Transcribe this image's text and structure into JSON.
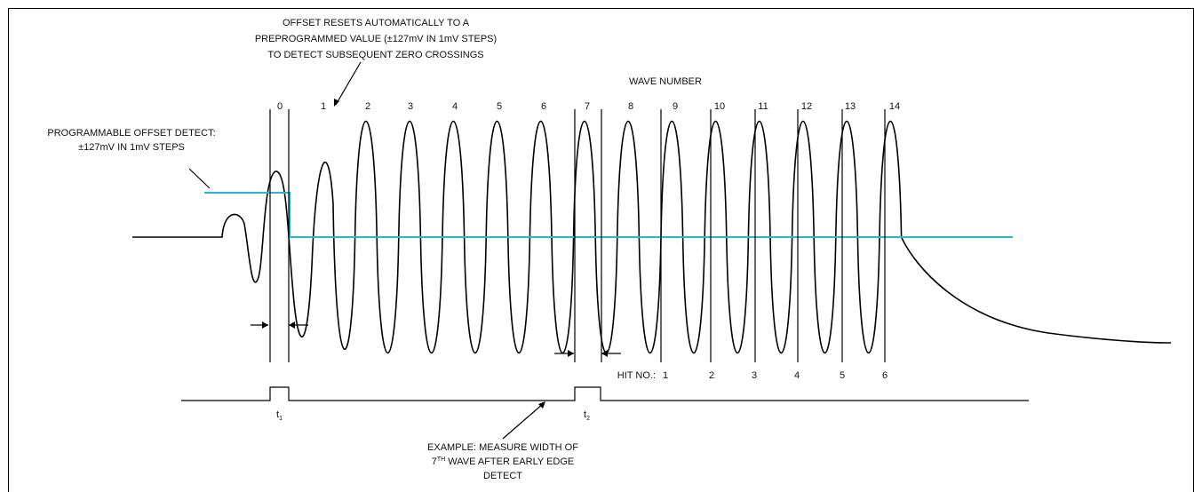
{
  "annotations": {
    "offset_reset": [
      "OFFSET RESETS AUTOMATICALLY TO A",
      "PREPROGRAMMED VALUE (±127mV IN 1mV STEPS)",
      "TO DETECT SUBSEQUENT ZERO CROSSINGS"
    ],
    "programmable_offset": [
      "PROGRAMMABLE OFFSET DETECT:",
      "±127mV IN 1mV STEPS"
    ],
    "example": [
      "EXAMPLE: MEASURE WIDTH OF",
      "WAVE AFTER EARLY EDGE",
      "DETECT"
    ],
    "example_prefix": "7",
    "example_superscript": "TH"
  },
  "wave_number_title": "WAVE NUMBER",
  "wave_numbers": [
    "0",
    "1",
    "2",
    "3",
    "4",
    "5",
    "6",
    "7",
    "8",
    "9",
    "10",
    "11",
    "12",
    "13",
    "14"
  ],
  "hit_label": "HIT NO.:",
  "hit_numbers": [
    "1",
    "2",
    "3",
    "4",
    "5",
    "6"
  ],
  "pulses": [
    {
      "base": "t",
      "sub": "1"
    },
    {
      "base": "t",
      "sub": "2"
    }
  ],
  "colors": {
    "threshold": "#29b6d6",
    "waveform": "#000000"
  }
}
